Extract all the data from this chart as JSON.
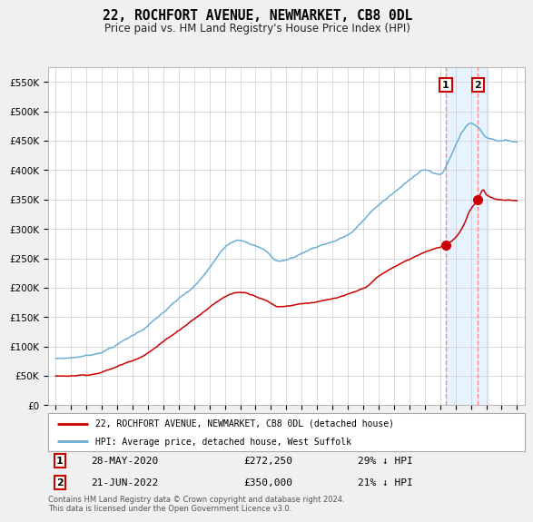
{
  "title": "22, ROCHFORT AVENUE, NEWMARKET, CB8 0DL",
  "subtitle": "Price paid vs. HM Land Registry's House Price Index (HPI)",
  "ylim": [
    0,
    575000
  ],
  "yticks": [
    0,
    50000,
    100000,
    150000,
    200000,
    250000,
    300000,
    350000,
    400000,
    450000,
    500000,
    550000
  ],
  "ytick_labels": [
    "£0",
    "£50K",
    "£100K",
    "£150K",
    "£200K",
    "£250K",
    "£300K",
    "£350K",
    "£400K",
    "£450K",
    "£500K",
    "£550K"
  ],
  "hpi_color": "#6baed6",
  "price_color": "#cc0000",
  "vline_color": "#ff8888",
  "highlight_color": "#ddeeff",
  "legend_label_price": "22, ROCHFORT AVENUE, NEWMARKET, CB8 0DL (detached house)",
  "legend_label_hpi": "HPI: Average price, detached house, West Suffolk",
  "annotation1_date": "28-MAY-2020",
  "annotation1_price": "£272,250",
  "annotation1_pct": "29% ↓ HPI",
  "annotation2_date": "21-JUN-2022",
  "annotation2_price": "£350,000",
  "annotation2_pct": "21% ↓ HPI",
  "footer": "Contains HM Land Registry data © Crown copyright and database right 2024.\nThis data is licensed under the Open Government Licence v3.0.",
  "bg_color": "#f0f0f0",
  "plot_bg_color": "#ffffff",
  "box_edge_color": "#cc0000",
  "sale1_year": 2020.375,
  "sale1_price": 272250,
  "sale2_year": 2022.458,
  "sale2_price": 350000,
  "xmin": 1994.5,
  "xmax": 2025.5
}
